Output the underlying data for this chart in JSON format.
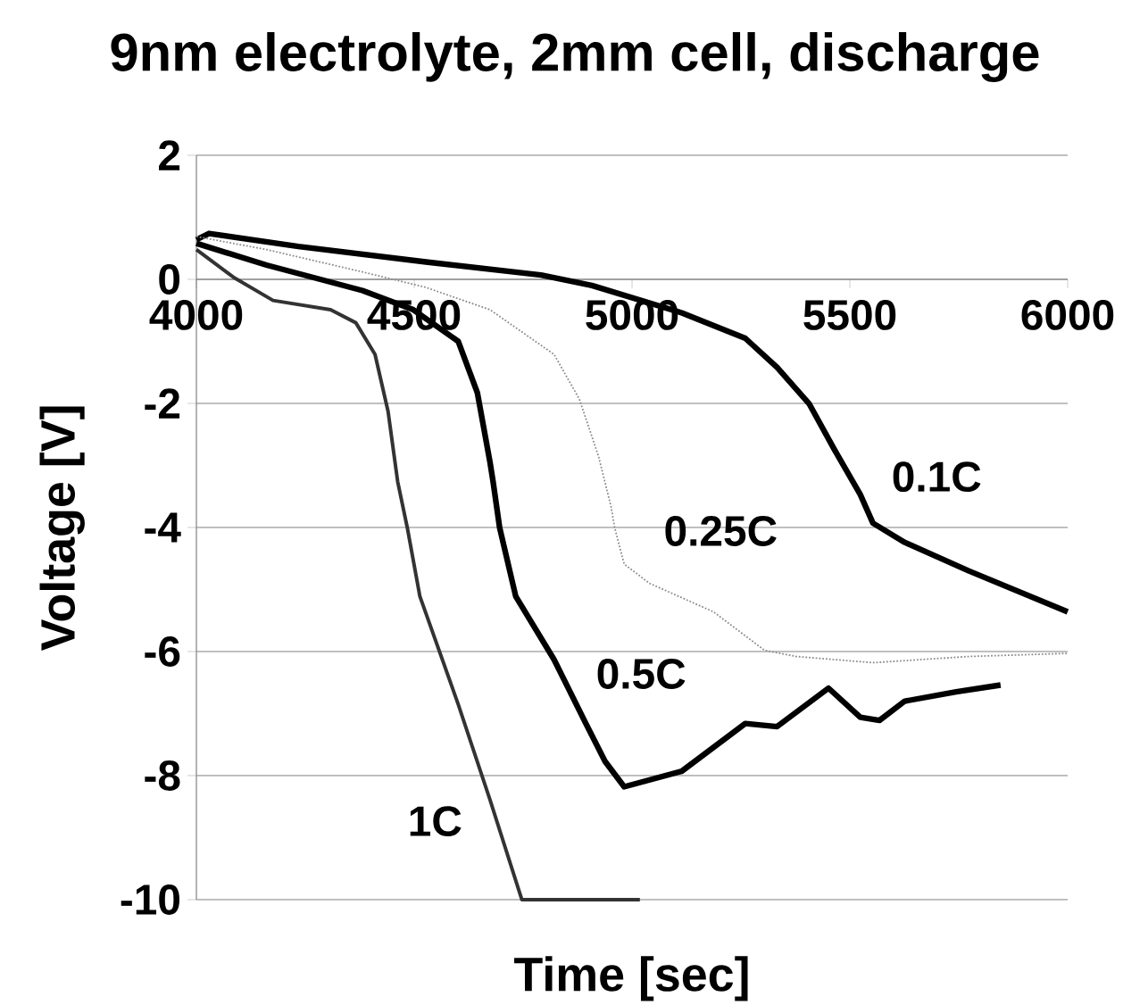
{
  "chart_data": {
    "type": "line",
    "title": "9nm electrolyte, 2mm cell, discharge",
    "xlabel": "Time [sec]",
    "ylabel": "Voltage [V]",
    "xlim": [
      4000,
      6000
    ],
    "xticks": [
      4000,
      4500,
      5000,
      5500,
      6000
    ],
    "ylim": [
      -10,
      2
    ],
    "yticks": [
      -10,
      -8,
      -6,
      -4,
      -2,
      0,
      2
    ],
    "grid": "y",
    "series": [
      {
        "name": "0.1C",
        "color": "#000000",
        "line_style": "solid",
        "x": [
          4000,
          4029,
          4234,
          4527,
          4791,
          4908,
          5114,
          5260,
          5333,
          5407,
          5465,
          5524,
          5553,
          5626,
          5773,
          6000
        ],
        "values": [
          0.64,
          0.74,
          0.53,
          0.28,
          0.07,
          -0.1,
          -0.54,
          -0.95,
          -1.42,
          -2.01,
          -2.75,
          -3.47,
          -3.93,
          -4.24,
          -4.7,
          -5.36
        ]
      },
      {
        "name": "0.25C",
        "color": "#8c8c8c",
        "line_style": "dotted",
        "x": [
          4000,
          4161,
          4381,
          4527,
          4674,
          4821,
          4879,
          4923,
          4952,
          4960,
          4982,
          5040,
          5187,
          5304,
          5377,
          5553,
          5773,
          6000
        ],
        "values": [
          0.69,
          0.48,
          0.12,
          -0.13,
          -0.49,
          -1.21,
          -1.93,
          -2.85,
          -3.67,
          -4.0,
          -4.59,
          -4.9,
          -5.36,
          -5.98,
          -6.08,
          -6.18,
          -6.08,
          -6.03
        ]
      },
      {
        "name": "0.5C",
        "color": "#000000",
        "line_style": "solid",
        "x": [
          4000,
          4161,
          4381,
          4498,
          4601,
          4645,
          4674,
          4681,
          4696,
          4733,
          4821,
          4894,
          4938,
          4982,
          5114,
          5260,
          5333,
          5451,
          5524,
          5568,
          5626,
          5744,
          5846
        ],
        "values": [
          0.58,
          0.23,
          -0.18,
          -0.49,
          -1.0,
          -1.83,
          -2.95,
          -3.26,
          -4.0,
          -5.11,
          -6.13,
          -7.16,
          -7.77,
          -8.18,
          -7.93,
          -7.16,
          -7.21,
          -6.59,
          -7.06,
          -7.11,
          -6.8,
          -6.65,
          -6.54
        ]
      },
      {
        "name": "1C",
        "color": "#333333",
        "line_style": "solid",
        "x": [
          4000,
          4088,
          4176,
          4308,
          4366,
          4410,
          4440,
          4462,
          4484,
          4513,
          4601,
          4674,
          4747,
          5018
        ],
        "values": [
          0.48,
          0.02,
          -0.34,
          -0.49,
          -0.7,
          -1.21,
          -2.13,
          -3.26,
          -4.0,
          -5.11,
          -6.85,
          -8.39,
          -10,
          -10
        ]
      }
    ]
  }
}
